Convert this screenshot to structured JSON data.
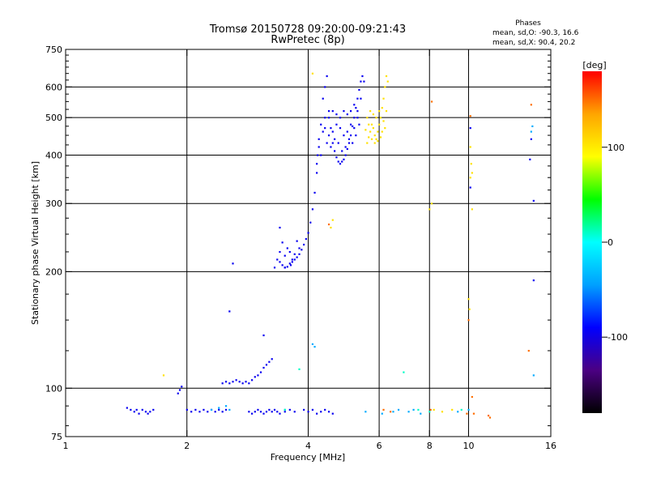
{
  "header": {
    "title_line1": "Tromsø 20150728 09:20:00-09:21:43",
    "title_line2": "RwPretec (8p)"
  },
  "phase_box": {
    "title": "Phases",
    "line_o": "mean, sd,O: -90.3, 16.6",
    "line_x": "mean, sd,X:  90.4, 20.2"
  },
  "colorbar": {
    "unit_label": "[deg]",
    "ticks": [
      {
        "value": 100,
        "label": "100"
      },
      {
        "value": 0,
        "label": "0"
      },
      {
        "value": -100,
        "label": "-100"
      }
    ],
    "range": [
      -180,
      180
    ],
    "colormap": [
      "#000000",
      "#4b0082",
      "#0000ff",
      "#00a0ff",
      "#00ffff",
      "#00ff00",
      "#ffff00",
      "#ffa500",
      "#ff0000"
    ]
  },
  "chart_data": {
    "type": "scatter",
    "xlabel": "Frequency [MHz]",
    "ylabel": "Stationary phase Virtual Height [km]",
    "xscale": "log",
    "yscale": "log",
    "xlim": [
      1,
      16
    ],
    "ylim": [
      75,
      750
    ],
    "x_ticks": [
      {
        "value": 1,
        "label": "1"
      },
      {
        "value": 2,
        "label": "2"
      },
      {
        "value": 4,
        "label": "4"
      },
      {
        "value": 6,
        "label": "6"
      },
      {
        "value": 8,
        "label": "8"
      },
      {
        "value": 10,
        "label": "10"
      },
      {
        "value": 16,
        "label": "16"
      }
    ],
    "y_ticks": [
      {
        "value": 75,
        "label": "75"
      },
      {
        "value": 100,
        "label": "100"
      },
      {
        "value": 200,
        "label": "200"
      },
      {
        "value": 300,
        "label": "300"
      },
      {
        "value": 400,
        "label": "400"
      },
      {
        "value": 500,
        "label": "500"
      },
      {
        "value": 600,
        "label": "600"
      },
      {
        "value": 750,
        "label": "750"
      }
    ],
    "grid_x": [
      2,
      4,
      6,
      8,
      10
    ],
    "grid_y": [
      100,
      200,
      300,
      400,
      500,
      600
    ],
    "series": [
      {
        "color_phase": -95,
        "points": [
          [
            1.42,
            89
          ],
          [
            1.45,
            88
          ],
          [
            1.48,
            87
          ],
          [
            1.5,
            88
          ],
          [
            1.52,
            86
          ],
          [
            1.55,
            88
          ],
          [
            1.58,
            87
          ],
          [
            1.6,
            86
          ],
          [
            1.62,
            87
          ],
          [
            1.65,
            88
          ],
          [
            1.9,
            97
          ],
          [
            1.92,
            99
          ],
          [
            1.94,
            101
          ],
          [
            2.0,
            88
          ],
          [
            2.05,
            87
          ],
          [
            2.1,
            88
          ],
          [
            2.15,
            87
          ],
          [
            2.2,
            88
          ],
          [
            2.25,
            87
          ],
          [
            2.3,
            88
          ],
          [
            2.35,
            87
          ],
          [
            2.4,
            88
          ],
          [
            2.45,
            87
          ],
          [
            2.5,
            88
          ],
          [
            2.45,
            103
          ],
          [
            2.5,
            104
          ],
          [
            2.55,
            103
          ],
          [
            2.6,
            104
          ],
          [
            2.65,
            105
          ],
          [
            2.7,
            104
          ],
          [
            2.75,
            103
          ],
          [
            2.8,
            104
          ],
          [
            2.85,
            103
          ],
          [
            2.9,
            105
          ],
          [
            2.95,
            107
          ],
          [
            3.0,
            108
          ],
          [
            3.05,
            110
          ],
          [
            3.1,
            113
          ],
          [
            3.15,
            115
          ],
          [
            3.2,
            117
          ],
          [
            3.25,
            119
          ],
          [
            2.85,
            87
          ],
          [
            2.9,
            86
          ],
          [
            2.95,
            87
          ],
          [
            3.0,
            88
          ],
          [
            3.05,
            87
          ],
          [
            3.1,
            86
          ],
          [
            3.15,
            87
          ],
          [
            3.2,
            88
          ],
          [
            3.25,
            87
          ],
          [
            3.3,
            88
          ],
          [
            3.35,
            87
          ],
          [
            3.4,
            86
          ],
          [
            3.5,
            87
          ],
          [
            3.6,
            88
          ],
          [
            3.7,
            87
          ],
          [
            3.4,
            212
          ],
          [
            3.45,
            208
          ],
          [
            3.5,
            205
          ],
          [
            3.55,
            206
          ],
          [
            3.6,
            210
          ],
          [
            3.65,
            212
          ],
          [
            3.7,
            215
          ],
          [
            3.75,
            218
          ],
          [
            3.8,
            222
          ],
          [
            3.85,
            228
          ],
          [
            3.9,
            235
          ],
          [
            3.95,
            243
          ],
          [
            4.0,
            252
          ],
          [
            4.05,
            268
          ],
          [
            4.1,
            290
          ],
          [
            4.15,
            320
          ],
          [
            4.2,
            360
          ],
          [
            4.22,
            400
          ],
          [
            4.25,
            440
          ],
          [
            3.4,
            225
          ],
          [
            3.5,
            220
          ],
          [
            3.6,
            225
          ],
          [
            3.7,
            222
          ],
          [
            3.8,
            230
          ],
          [
            3.45,
            238
          ],
          [
            3.55,
            230
          ],
          [
            3.65,
            215
          ],
          [
            3.75,
            240
          ],
          [
            3.3,
            205
          ],
          [
            3.35,
            215
          ],
          [
            3.4,
            260
          ],
          [
            3.5,
            205
          ],
          [
            3.62,
            208
          ],
          [
            4.3,
            480
          ],
          [
            4.35,
            560
          ],
          [
            4.4,
            600
          ],
          [
            4.45,
            640
          ],
          [
            4.5,
            520
          ],
          [
            4.55,
            470
          ],
          [
            4.6,
            430
          ],
          [
            4.65,
            410
          ],
          [
            4.7,
            395
          ],
          [
            4.75,
            385
          ],
          [
            4.8,
            380
          ],
          [
            4.85,
            385
          ],
          [
            4.9,
            390
          ],
          [
            4.95,
            400
          ],
          [
            5.0,
            415
          ],
          [
            5.05,
            430
          ],
          [
            5.1,
            450
          ],
          [
            5.15,
            475
          ],
          [
            5.2,
            500
          ],
          [
            5.25,
            530
          ],
          [
            5.3,
            560
          ],
          [
            5.35,
            590
          ],
          [
            5.4,
            620
          ],
          [
            5.45,
            640
          ],
          [
            5.5,
            620
          ],
          [
            4.4,
            470
          ],
          [
            4.5,
            450
          ],
          [
            4.6,
            460
          ],
          [
            4.7,
            480
          ],
          [
            4.8,
            470
          ],
          [
            4.9,
            450
          ],
          [
            5.0,
            460
          ],
          [
            5.1,
            480
          ],
          [
            5.2,
            470
          ],
          [
            5.3,
            500
          ],
          [
            4.45,
            430
          ],
          [
            4.55,
            420
          ],
          [
            4.65,
            440
          ],
          [
            4.75,
            430
          ],
          [
            4.85,
            410
          ],
          [
            4.95,
            420
          ],
          [
            5.05,
            440
          ],
          [
            5.15,
            430
          ],
          [
            5.25,
            450
          ],
          [
            5.35,
            480
          ],
          [
            4.5,
            500
          ],
          [
            4.6,
            520
          ],
          [
            4.7,
            510
          ],
          [
            4.8,
            500
          ],
          [
            4.9,
            520
          ],
          [
            5.0,
            510
          ],
          [
            5.1,
            520
          ],
          [
            5.2,
            540
          ],
          [
            5.3,
            520
          ],
          [
            5.4,
            560
          ],
          [
            4.3,
            400
          ],
          [
            4.2,
            380
          ],
          [
            4.25,
            420
          ],
          [
            4.35,
            460
          ],
          [
            4.4,
            500
          ],
          [
            3.9,
            88
          ],
          [
            4.0,
            87
          ],
          [
            4.1,
            88
          ],
          [
            4.2,
            86
          ],
          [
            4.3,
            87
          ],
          [
            4.4,
            88
          ],
          [
            4.5,
            87
          ],
          [
            4.6,
            86
          ],
          [
            2.6,
            210
          ],
          [
            2.55,
            158
          ],
          [
            3.1,
            137
          ],
          [
            10.1,
            470
          ],
          [
            10.1,
            330
          ],
          [
            14.2,
            390
          ],
          [
            14.5,
            305
          ],
          [
            14.5,
            190
          ],
          [
            14.3,
            440
          ]
        ]
      },
      {
        "color_phase": -40,
        "points": [
          [
            2.3,
            88
          ],
          [
            2.4,
            89
          ],
          [
            2.5,
            90
          ],
          [
            2.55,
            88
          ],
          [
            3.5,
            88
          ],
          [
            4.1,
            130
          ],
          [
            4.15,
            128
          ],
          [
            5.55,
            87
          ],
          [
            6.1,
            86
          ],
          [
            6.5,
            87
          ],
          [
            6.7,
            88
          ],
          [
            7.1,
            87
          ],
          [
            7.3,
            88
          ],
          [
            7.6,
            86
          ],
          [
            14.3,
            460
          ],
          [
            14.4,
            475
          ],
          [
            14.5,
            108
          ],
          [
            10.0,
            88
          ],
          [
            9.4,
            87
          ]
        ]
      },
      {
        "color_phase": 10,
        "points": [
          [
            3.5,
            88
          ],
          [
            3.8,
            112
          ],
          [
            7.5,
            88
          ],
          [
            8.0,
            87
          ],
          [
            9.6,
            88
          ],
          [
            6.9,
            110
          ]
        ]
      },
      {
        "color_phase": 105,
        "points": [
          [
            5.6,
            430
          ],
          [
            5.65,
            445
          ],
          [
            5.7,
            460
          ],
          [
            5.75,
            480
          ],
          [
            5.8,
            470
          ],
          [
            5.85,
            450
          ],
          [
            5.9,
            440
          ],
          [
            5.95,
            460
          ],
          [
            6.0,
            480
          ],
          [
            6.05,
            500
          ],
          [
            6.1,
            530
          ],
          [
            6.15,
            560
          ],
          [
            6.2,
            600
          ],
          [
            6.25,
            640
          ],
          [
            6.3,
            620
          ],
          [
            5.6,
            500
          ],
          [
            5.7,
            520
          ],
          [
            5.8,
            510
          ],
          [
            5.9,
            500
          ],
          [
            6.0,
            520
          ],
          [
            6.1,
            460
          ],
          [
            6.2,
            470
          ],
          [
            5.75,
            440
          ],
          [
            5.85,
            430
          ],
          [
            5.95,
            435
          ],
          [
            6.05,
            445
          ],
          [
            6.15,
            490
          ],
          [
            6.25,
            520
          ],
          [
            5.65,
            480
          ],
          [
            5.55,
            465
          ],
          [
            4.1,
            650
          ],
          [
            8.2,
            88
          ],
          [
            8.6,
            87
          ],
          [
            9.1,
            88
          ],
          [
            8.0,
            290
          ],
          [
            8.1,
            300
          ],
          [
            10.1,
            420
          ],
          [
            10.15,
            380
          ],
          [
            10.2,
            360
          ],
          [
            10.1,
            350
          ],
          [
            10.2,
            290
          ],
          [
            1.75,
            108
          ],
          [
            4.6,
            272
          ],
          [
            4.55,
            260
          ],
          [
            10.0,
            170
          ],
          [
            10.05,
            160
          ]
        ]
      },
      {
        "color_phase": 150,
        "points": [
          [
            6.15,
            88
          ],
          [
            6.4,
            87
          ],
          [
            8.05,
            88
          ],
          [
            9.9,
            86
          ],
          [
            10.1,
            505
          ],
          [
            10.3,
            86
          ],
          [
            11.3,
            84
          ],
          [
            14.3,
            540
          ],
          [
            14.1,
            125
          ],
          [
            8.1,
            550
          ],
          [
            10.0,
            150
          ],
          [
            10.2,
            95
          ],
          [
            11.2,
            85
          ],
          [
            4.5,
            265
          ]
        ]
      }
    ]
  }
}
